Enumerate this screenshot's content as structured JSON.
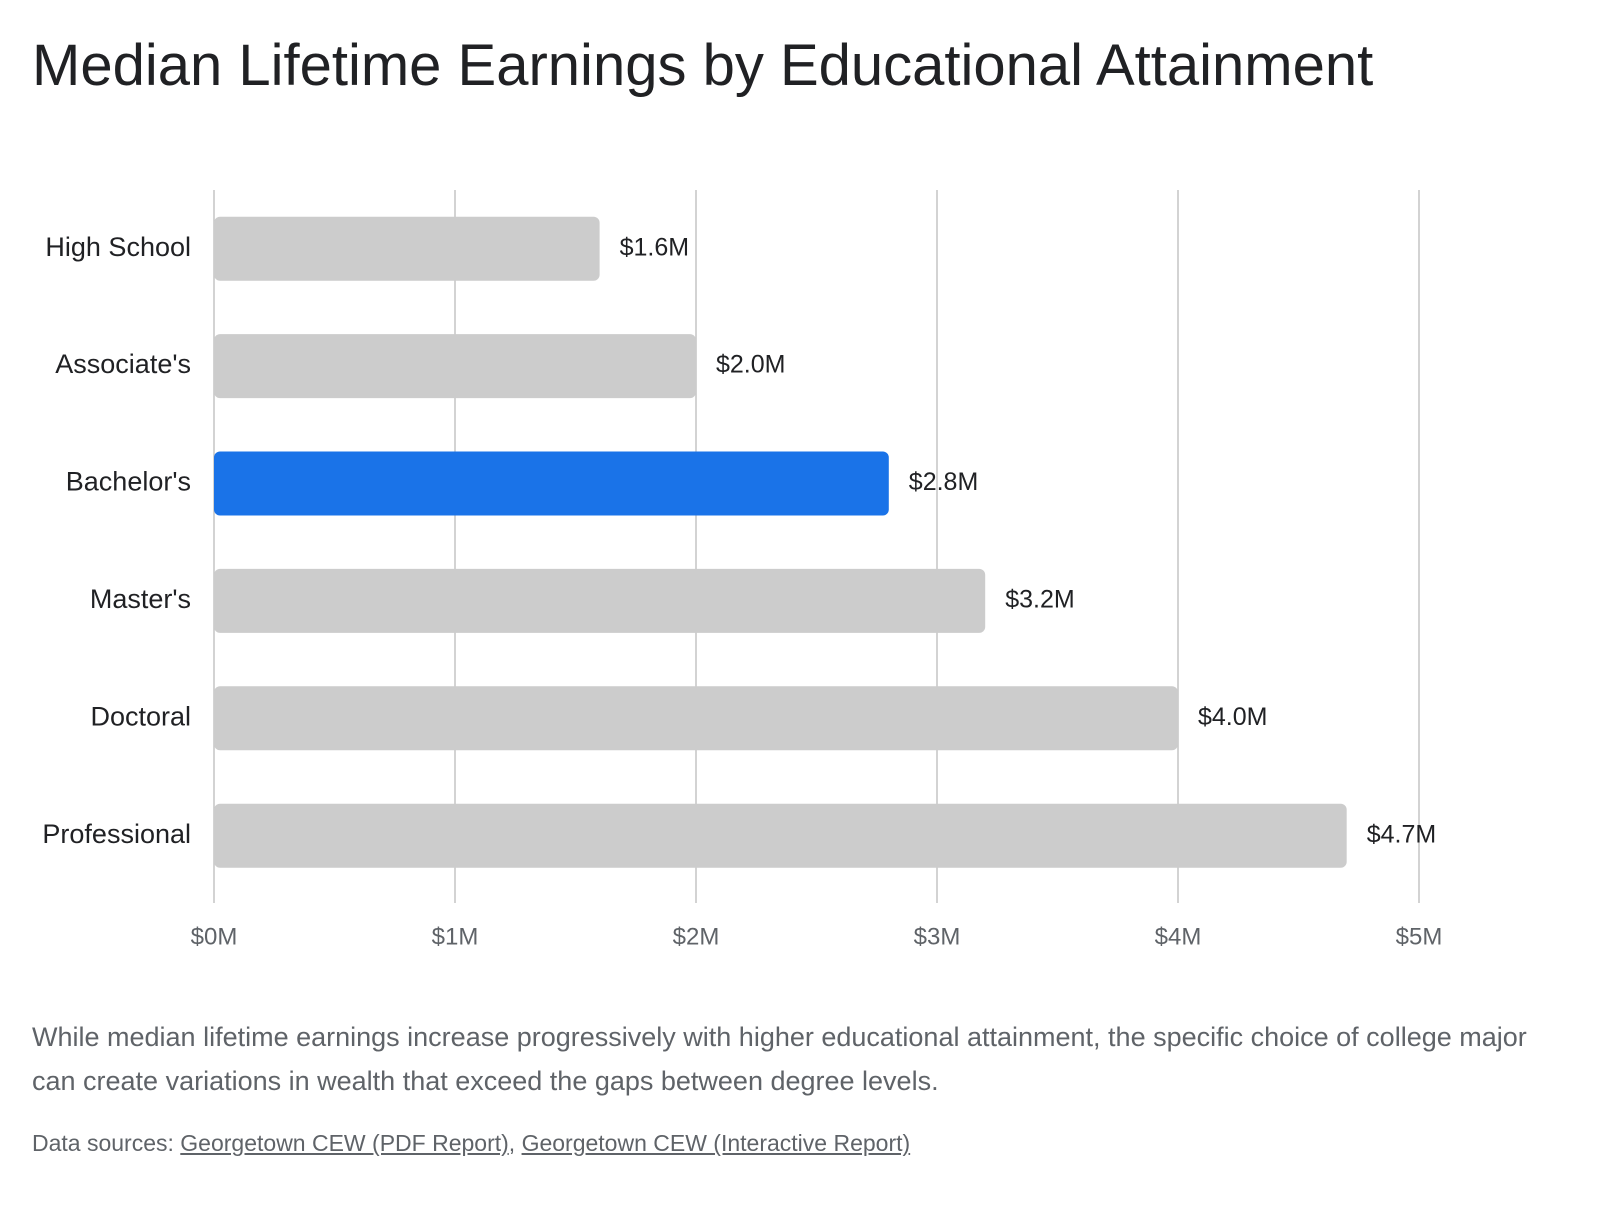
{
  "title": "Median Lifetime Earnings by Educational Attainment",
  "caption": "While median lifetime earnings increase progressively with higher educational attainment, the specific choice of college major can create variations in wealth that exceed the gaps between degree levels.",
  "sources": {
    "prefix": "Data sources:",
    "separator": ",",
    "links": [
      "Georgetown CEW (PDF Report)",
      "Georgetown CEW (Interactive Report)"
    ]
  },
  "colors": {
    "bar": "#cccccc",
    "highlight": "#1a73e8",
    "gridline": "#c8c8c8",
    "text": "#202124",
    "muted": "#5f6368"
  },
  "chart_data": {
    "type": "bar",
    "orientation": "horizontal",
    "categories": [
      "High School",
      "Associate's",
      "Bachelor's",
      "Master's",
      "Doctoral",
      "Professional"
    ],
    "values": [
      1.6,
      2.0,
      2.8,
      3.2,
      4.0,
      4.7
    ],
    "value_labels": [
      "$1.6M",
      "$2.0M",
      "$2.8M",
      "$3.2M",
      "$4.0M",
      "$4.7M"
    ],
    "highlight_category": "Bachelor's",
    "xlim": [
      0,
      5
    ],
    "x_ticks": [
      0,
      1,
      2,
      3,
      4,
      5
    ],
    "x_tick_labels": [
      "$0M",
      "$1M",
      "$2M",
      "$3M",
      "$4M",
      "$5M"
    ],
    "grid": true,
    "xlabel": "",
    "ylabel": ""
  }
}
